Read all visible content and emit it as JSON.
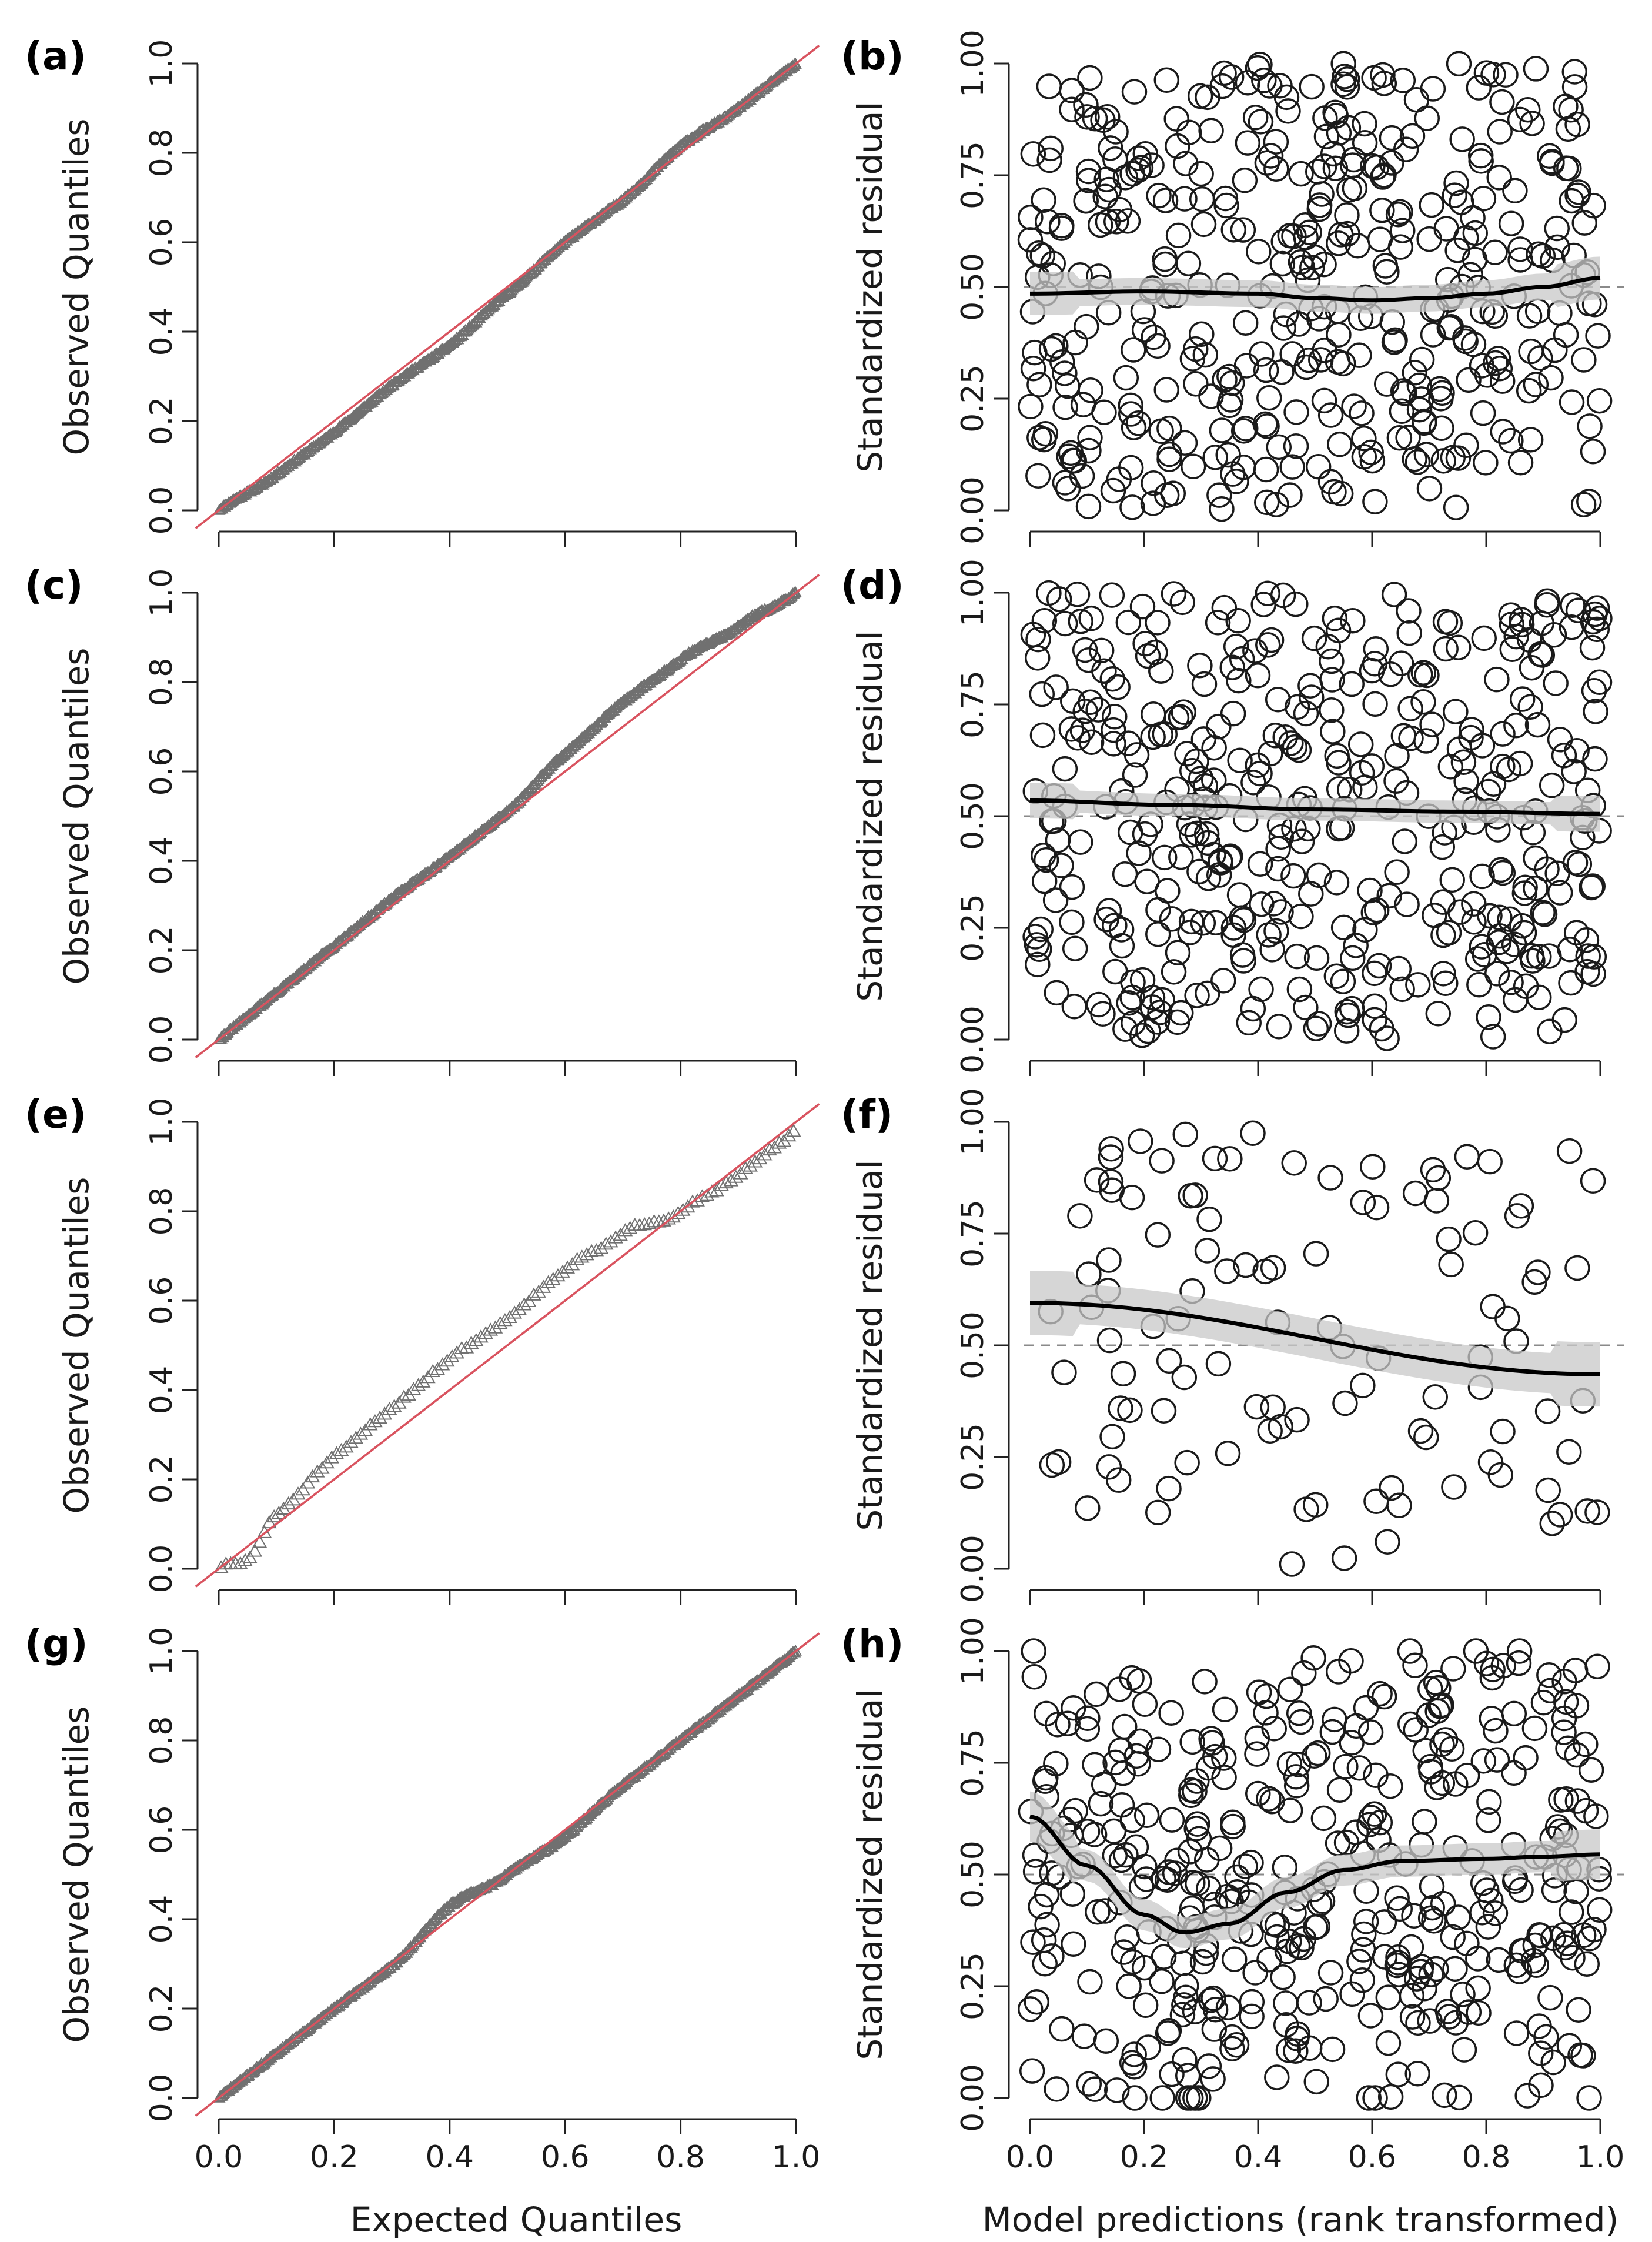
{
  "figure": {
    "left_xlabel": "Expected Quantiles",
    "right_xlabel": "Model predictions (rank transformed)"
  },
  "chart_data": [
    {
      "panel": "(a)",
      "type": "scatter",
      "subtype": "qq-plot",
      "xlabel": "",
      "ylabel": "Observed Quantiles",
      "xlim": [
        0,
        1
      ],
      "ylim": [
        0,
        1
      ],
      "xticks": [
        "0.0",
        "0.2",
        "0.4",
        "0.6",
        "0.8",
        "1.0"
      ],
      "yticks": [
        "0.0",
        "0.2",
        "0.4",
        "0.6",
        "0.8",
        "1.0"
      ],
      "marker": "triangle",
      "reference_line": {
        "from": [
          0,
          0
        ],
        "to": [
          1,
          1
        ],
        "color": "#d9535f"
      },
      "n_points": 600,
      "seed": 11,
      "deviation_curve": {
        "x": [
          0,
          0.1,
          0.2,
          0.3,
          0.4,
          0.5,
          0.6,
          0.7,
          0.8,
          0.9,
          1.0
        ],
        "dy": [
          0.0,
          -0.02,
          -0.025,
          -0.02,
          -0.03,
          -0.015,
          0.0,
          -0.005,
          0.015,
          0.0,
          0.0
        ]
      }
    },
    {
      "panel": "(b)",
      "type": "scatter",
      "subtype": "residuals",
      "xlabel": "",
      "ylabel": "Standardized residual",
      "xlim": [
        0,
        1
      ],
      "ylim": [
        0,
        1
      ],
      "xticks": [],
      "yticks": [
        "0.00",
        "0.25",
        "0.50",
        "0.75",
        "1.00"
      ],
      "marker": "circle",
      "n_points": 430,
      "seed": 21,
      "smooth": {
        "x": [
          0,
          0.2,
          0.4,
          0.5,
          0.6,
          0.7,
          0.8,
          0.9,
          1.0
        ],
        "y": [
          0.485,
          0.49,
          0.485,
          0.475,
          0.47,
          0.475,
          0.485,
          0.5,
          0.52
        ]
      },
      "ci_halfwidth": 0.03
    },
    {
      "panel": "(c)",
      "type": "scatter",
      "subtype": "qq-plot",
      "xlabel": "",
      "ylabel": "Observed Quantiles",
      "xlim": [
        0,
        1
      ],
      "ylim": [
        0,
        1
      ],
      "xticks": [
        "0.0",
        "0.2",
        "0.4",
        "0.6",
        "0.8",
        "1.0"
      ],
      "yticks": [
        "0.0",
        "0.2",
        "0.4",
        "0.6",
        "0.8",
        "1.0"
      ],
      "marker": "triangle",
      "reference_line": {
        "from": [
          0,
          0
        ],
        "to": [
          1,
          1
        ],
        "color": "#d9535f"
      },
      "n_points": 600,
      "seed": 31,
      "deviation_curve": {
        "x": [
          0,
          0.1,
          0.2,
          0.3,
          0.4,
          0.5,
          0.6,
          0.7,
          0.8,
          0.9,
          1.0
        ],
        "dy": [
          0.0,
          0.005,
          0.01,
          0.015,
          0.01,
          0.01,
          0.04,
          0.055,
          0.05,
          0.025,
          0.0
        ]
      }
    },
    {
      "panel": "(d)",
      "type": "scatter",
      "subtype": "residuals",
      "xlabel": "",
      "ylabel": "Standardized residual",
      "xlim": [
        0,
        1
      ],
      "ylim": [
        0,
        1
      ],
      "xticks": [],
      "yticks": [
        "0.00",
        "0.25",
        "0.50",
        "0.75",
        "1.00"
      ],
      "marker": "circle",
      "n_points": 430,
      "seed": 41,
      "smooth": {
        "x": [
          0,
          0.25,
          0.5,
          0.75,
          1.0
        ],
        "y": [
          0.535,
          0.525,
          0.515,
          0.51,
          0.505
        ]
      },
      "ci_halfwidth": 0.025
    },
    {
      "panel": "(e)",
      "type": "scatter",
      "subtype": "qq-plot",
      "xlabel": "",
      "ylabel": "Observed Quantiles",
      "xlim": [
        0,
        1
      ],
      "ylim": [
        0,
        1
      ],
      "xticks": [
        "0.0",
        "0.2",
        "0.4",
        "0.6",
        "0.8",
        "1.0"
      ],
      "yticks": [
        "0.0",
        "0.2",
        "0.4",
        "0.6",
        "0.8",
        "1.0"
      ],
      "marker": "triangle",
      "reference_line": {
        "from": [
          0,
          0
        ],
        "to": [
          1,
          1
        ],
        "color": "#d9535f"
      },
      "n_points": 120,
      "seed": 51,
      "deviation_curve": {
        "x": [
          0,
          0.05,
          0.1,
          0.2,
          0.3,
          0.4,
          0.5,
          0.6,
          0.7,
          0.8,
          0.9,
          1.0
        ],
        "dy": [
          0.0,
          -0.03,
          0.02,
          0.05,
          0.06,
          0.07,
          0.06,
          0.07,
          0.05,
          0.0,
          -0.02,
          -0.02
        ]
      }
    },
    {
      "panel": "(f)",
      "type": "scatter",
      "subtype": "residuals",
      "xlabel": "",
      "ylabel": "Standardized residual",
      "xlim": [
        0,
        1
      ],
      "ylim": [
        0,
        1
      ],
      "xticks": [],
      "yticks": [
        "0.00",
        "0.25",
        "0.50",
        "0.75",
        "1.00"
      ],
      "marker": "circle",
      "n_points": 110,
      "seed": 61,
      "smooth": {
        "x": [
          0,
          1.0
        ],
        "y": [
          0.595,
          0.435
        ]
      },
      "ci_halfwidth": 0.045
    },
    {
      "panel": "(g)",
      "type": "scatter",
      "subtype": "qq-plot",
      "xlabel": "Expected Quantiles",
      "ylabel": "Observed Quantiles",
      "xlim": [
        0,
        1
      ],
      "ylim": [
        0,
        1
      ],
      "xticks": [
        "0.0",
        "0.2",
        "0.4",
        "0.6",
        "0.8",
        "1.0"
      ],
      "yticks": [
        "0.0",
        "0.2",
        "0.4",
        "0.6",
        "0.8",
        "1.0"
      ],
      "marker": "triangle",
      "reference_line": {
        "from": [
          0,
          0
        ],
        "to": [
          1,
          1
        ],
        "color": "#d9535f"
      },
      "n_points": 600,
      "seed": 71,
      "deviation_curve": {
        "x": [
          0,
          0.1,
          0.2,
          0.3,
          0.4,
          0.5,
          0.6,
          0.7,
          0.8,
          0.9,
          1.0
        ],
        "dy": [
          0.0,
          0.0,
          0.0,
          -0.005,
          0.03,
          0.0,
          -0.015,
          0.0,
          0.0,
          0.0,
          0.0
        ]
      }
    },
    {
      "panel": "(h)",
      "type": "scatter",
      "subtype": "residuals",
      "xlabel": "Model predictions (rank transformed)",
      "ylabel": "Standardized residual",
      "xlim": [
        0,
        1
      ],
      "ylim": [
        0,
        1
      ],
      "xticks": [
        "0.0",
        "0.2",
        "0.4",
        "0.6",
        "0.8",
        "1.0"
      ],
      "yticks": [
        "0.00",
        "0.25",
        "0.50",
        "0.75",
        "1.00"
      ],
      "marker": "circle",
      "n_points": 430,
      "seed": 81,
      "smooth": {
        "x": [
          0,
          0.1,
          0.2,
          0.27,
          0.35,
          0.45,
          0.55,
          0.65,
          0.8,
          0.9,
          1.0
        ],
        "y": [
          0.63,
          0.52,
          0.41,
          0.37,
          0.39,
          0.46,
          0.51,
          0.53,
          0.535,
          0.54,
          0.545
        ]
      },
      "ci_halfwidth": 0.035
    }
  ]
}
